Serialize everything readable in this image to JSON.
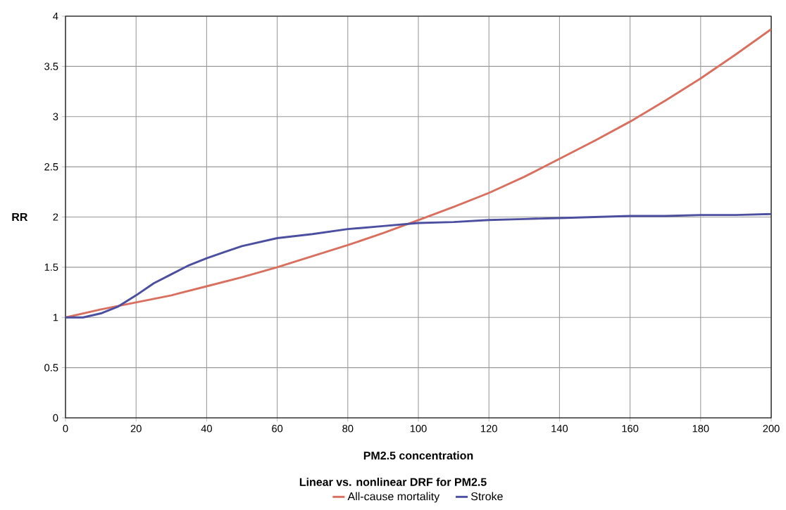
{
  "chart_data": {
    "type": "line",
    "xlabel": "PM2.5 concentration",
    "ylabel": "RR",
    "legend_title": "Linear vs. nonlinear DRF for PM2.5",
    "legend": "bottom",
    "grid": true,
    "marker": "none",
    "line_style": "solid",
    "xlim": [
      0,
      200
    ],
    "xticks": [
      0,
      20,
      40,
      60,
      80,
      100,
      120,
      140,
      160,
      180,
      200
    ],
    "ylim": [
      0,
      4
    ],
    "yticks": [
      0,
      0.5,
      1,
      1.5,
      2,
      2.5,
      3,
      3.5,
      4
    ],
    "series": [
      {
        "name": "All-cause mortality",
        "color": "#d9705f",
        "x": [
          0,
          10,
          20,
          30,
          40,
          50,
          60,
          70,
          80,
          90,
          100,
          110,
          120,
          130,
          140,
          150,
          160,
          170,
          180,
          190,
          200
        ],
        "values": [
          1.0,
          1.08,
          1.15,
          1.22,
          1.31,
          1.4,
          1.5,
          1.61,
          1.72,
          1.84,
          1.97,
          2.1,
          2.24,
          2.4,
          2.58,
          2.76,
          2.95,
          3.16,
          3.38,
          3.62,
          3.87
        ]
      },
      {
        "name": "Stroke",
        "color": "#4c4fa0",
        "x": [
          0,
          5,
          10,
          15,
          20,
          25,
          30,
          35,
          40,
          45,
          50,
          55,
          60,
          70,
          80,
          90,
          100,
          110,
          120,
          130,
          140,
          150,
          160,
          170,
          180,
          190,
          200
        ],
        "values": [
          1.0,
          1.0,
          1.04,
          1.11,
          1.22,
          1.34,
          1.43,
          1.52,
          1.59,
          1.65,
          1.71,
          1.75,
          1.79,
          1.83,
          1.88,
          1.91,
          1.94,
          1.95,
          1.97,
          1.98,
          1.99,
          2.0,
          2.01,
          2.01,
          2.02,
          2.02,
          2.03
        ]
      }
    ]
  }
}
